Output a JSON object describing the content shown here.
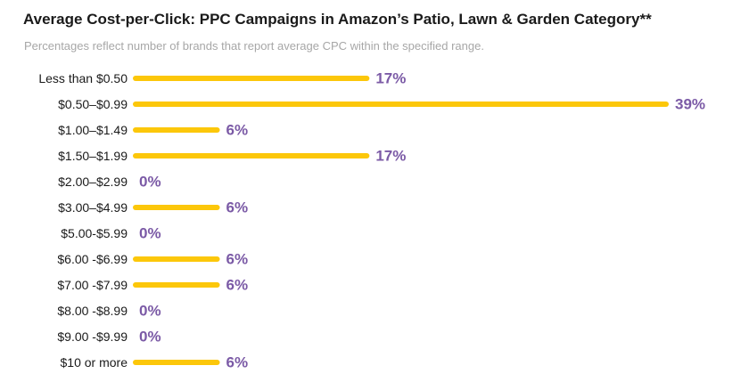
{
  "chart_data": {
    "type": "bar",
    "orientation": "horizontal",
    "title": "Average Cost-per-Click: PPC Campaigns in Amazon’s Patio, Lawn & Garden Category**",
    "subtitle": "Percentages reflect number of brands that report average CPC within the specified range.",
    "categories": [
      "Less than $0.50",
      "$0.50–$0.99",
      "$1.00–$1.49",
      "$1.50–$1.99",
      "$2.00–$2.99",
      "$3.00–$4.99",
      "$5.00-$5.99",
      "$6.00 -$6.99",
      "$7.00 -$7.99",
      "$8.00 -$8.99",
      "$9.00 -$9.99",
      "$10 or more"
    ],
    "values": [
      17,
      39,
      6,
      17,
      0,
      6,
      0,
      6,
      6,
      0,
      0,
      6
    ],
    "value_labels": [
      "17%",
      "39%",
      "6%",
      "17%",
      "0%",
      "6%",
      "0%",
      "6%",
      "6%",
      "0%",
      "0%",
      "6%"
    ],
    "unit": "%",
    "xlim": [
      0,
      39
    ],
    "grid": false,
    "legend": "none",
    "colors": {
      "bar": "#FCC70A",
      "value_label": "#7B5AA6",
      "category_label": "#1a1a1a",
      "title": "#1a1a1a",
      "subtitle": "#a7a7a7"
    }
  }
}
